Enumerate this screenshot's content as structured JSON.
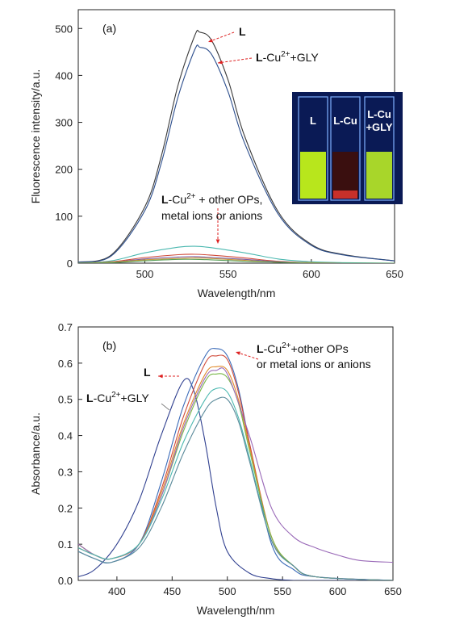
{
  "chart_data": [
    {
      "type": "line",
      "panel_label": "(a)",
      "xlabel": "Wavelength/nm",
      "ylabel": "Fluorescence intensity/a.u.",
      "xlim": [
        460,
        650
      ],
      "ylim": [
        0,
        540
      ],
      "xticks": [
        500,
        550,
        600,
        650
      ],
      "yticks": [
        0,
        100,
        200,
        300,
        400,
        500
      ],
      "series": [
        {
          "color": "#3a3a3a",
          "x": [
            460,
            480,
            500,
            510,
            520,
            530,
            533,
            540,
            550,
            560,
            580,
            600,
            620,
            650
          ],
          "y": [
            2,
            18,
            120,
            230,
            380,
            485,
            492,
            475,
            390,
            270,
            110,
            40,
            18,
            5
          ]
        },
        {
          "color": "#2b4d8c",
          "x": [
            460,
            480,
            500,
            510,
            520,
            530,
            533,
            540,
            550,
            560,
            580,
            600,
            620,
            650
          ],
          "y": [
            2,
            16,
            112,
            215,
            355,
            455,
            460,
            445,
            365,
            255,
            105,
            38,
            17,
            5
          ]
        },
        {
          "color": "#4bb8b0",
          "x": [
            460,
            480,
            500,
            520,
            530,
            540,
            560,
            580,
            600,
            620,
            650
          ],
          "y": [
            0,
            5,
            22,
            34,
            36,
            33,
            22,
            9,
            3,
            1,
            0
          ]
        },
        {
          "color": "#d04a3a",
          "x": [
            460,
            480,
            500,
            520,
            530,
            540,
            560,
            580,
            600,
            620,
            650
          ],
          "y": [
            0,
            3,
            12,
            18,
            19,
            17,
            11,
            4,
            1,
            0,
            0
          ]
        },
        {
          "color": "#7a5aa0",
          "x": [
            460,
            480,
            500,
            520,
            530,
            540,
            560,
            580,
            600,
            620,
            650
          ],
          "y": [
            0,
            2,
            9,
            13,
            14,
            12,
            8,
            3,
            1,
            0,
            0
          ]
        },
        {
          "color": "#c89a3a",
          "x": [
            460,
            480,
            500,
            520,
            530,
            540,
            560,
            580,
            600,
            620,
            650
          ],
          "y": [
            0,
            2,
            7,
            10,
            11,
            10,
            6,
            2,
            1,
            0,
            0
          ]
        },
        {
          "color": "#5aa05a",
          "x": [
            460,
            480,
            500,
            520,
            530,
            540,
            560,
            580,
            600,
            620,
            650
          ],
          "y": [
            0,
            1,
            5,
            8,
            8,
            7,
            4,
            2,
            0,
            0,
            0
          ]
        }
      ],
      "annotations": {
        "L": "L",
        "l_cu_gly_bold": "L",
        "l_cu_gly_rest": "-Cu",
        "l_cu_gly_sup": "2+",
        "l_cu_gly_tail": "+GLY",
        "others_bold": "L",
        "others_rest": "-Cu",
        "others_sup": "2+",
        "others_tail": " + other OPs,",
        "others_line2": "metal ions or anions"
      },
      "inset": {
        "vials": [
          "L",
          "L-Cu",
          "L-Cu"
        ],
        "vial3_line2": "+GLY",
        "colors": {
          "L": "#b8e61c",
          "L-Cu": "#3a0f0f",
          "L-Cu+GLY": "#a8d62a"
        }
      }
    },
    {
      "type": "line",
      "panel_label": "(b)",
      "xlabel": "Wavelength/nm",
      "ylabel": "Absorbance/a.u.",
      "xlim": [
        365,
        650
      ],
      "ylim": [
        0,
        0.7
      ],
      "xticks": [
        400,
        450,
        500,
        550,
        600,
        650
      ],
      "yticks": [
        0.0,
        0.1,
        0.2,
        0.3,
        0.4,
        0.5,
        0.6,
        0.7
      ],
      "series": [
        {
          "color": "#2f3f8f",
          "x": [
            365,
            380,
            400,
            420,
            440,
            460,
            470,
            480,
            490,
            500,
            520,
            540,
            560,
            580,
            650
          ],
          "y": [
            0.01,
            0.03,
            0.1,
            0.22,
            0.4,
            0.55,
            0.52,
            0.38,
            0.2,
            0.08,
            0.02,
            0.005,
            0,
            0,
            0
          ]
        },
        {
          "color": "#3a6ab8",
          "x": [
            365,
            380,
            395,
            420,
            440,
            460,
            480,
            490,
            500,
            510,
            520,
            540,
            560,
            580,
            650
          ],
          "y": [
            0.08,
            0.06,
            0.05,
            0.1,
            0.27,
            0.48,
            0.62,
            0.64,
            0.62,
            0.53,
            0.38,
            0.1,
            0.03,
            0.01,
            0.0
          ]
        },
        {
          "color": "#d04a3a",
          "x": [
            365,
            380,
            395,
            420,
            440,
            460,
            480,
            490,
            500,
            510,
            520,
            540,
            560,
            580,
            650
          ],
          "y": [
            0.09,
            0.07,
            0.06,
            0.1,
            0.25,
            0.45,
            0.6,
            0.62,
            0.61,
            0.52,
            0.38,
            0.12,
            0.04,
            0.01,
            0.0
          ]
        },
        {
          "color": "#e08a2a",
          "x": [
            365,
            380,
            395,
            420,
            440,
            460,
            480,
            490,
            500,
            510,
            520,
            540,
            560,
            580,
            650
          ],
          "y": [
            0.1,
            0.07,
            0.06,
            0.1,
            0.24,
            0.43,
            0.57,
            0.59,
            0.58,
            0.5,
            0.37,
            0.12,
            0.04,
            0.01,
            0.0
          ]
        },
        {
          "color": "#7ab84a",
          "x": [
            365,
            380,
            395,
            420,
            440,
            460,
            480,
            490,
            500,
            510,
            520,
            540,
            560,
            580,
            650
          ],
          "y": [
            0.1,
            0.07,
            0.06,
            0.1,
            0.23,
            0.41,
            0.55,
            0.57,
            0.56,
            0.49,
            0.36,
            0.12,
            0.04,
            0.01,
            0.0
          ]
        },
        {
          "color": "#9a6ab8",
          "x": [
            365,
            380,
            395,
            420,
            440,
            460,
            480,
            490,
            500,
            520,
            540,
            560,
            580,
            600,
            620,
            650
          ],
          "y": [
            0.1,
            0.07,
            0.06,
            0.1,
            0.23,
            0.42,
            0.56,
            0.58,
            0.57,
            0.4,
            0.2,
            0.12,
            0.09,
            0.07,
            0.055,
            0.05
          ]
        },
        {
          "color": "#4bb8b0",
          "x": [
            365,
            380,
            395,
            420,
            440,
            460,
            480,
            490,
            500,
            510,
            520,
            540,
            560,
            580,
            650
          ],
          "y": [
            0.09,
            0.07,
            0.06,
            0.1,
            0.22,
            0.38,
            0.5,
            0.53,
            0.52,
            0.45,
            0.34,
            0.11,
            0.04,
            0.01,
            0.0
          ]
        },
        {
          "color": "#5a8a9a",
          "x": [
            365,
            380,
            395,
            420,
            440,
            460,
            480,
            490,
            500,
            510,
            520,
            540,
            560,
            580,
            650
          ],
          "y": [
            0.08,
            0.06,
            0.05,
            0.09,
            0.2,
            0.35,
            0.47,
            0.5,
            0.5,
            0.44,
            0.33,
            0.11,
            0.04,
            0.01,
            0.0
          ]
        }
      ],
      "annotations": {
        "L": "L",
        "l_cu_gly_bold": "L",
        "l_cu_gly_rest": "-Cu",
        "l_cu_gly_sup": "2+",
        "l_cu_gly_tail": "+GLY",
        "others_bold": "L",
        "others_rest": "-Cu",
        "others_sup": "2+",
        "others_tail": "+other OPs",
        "others_line2": "or metal ions or anions"
      }
    }
  ]
}
